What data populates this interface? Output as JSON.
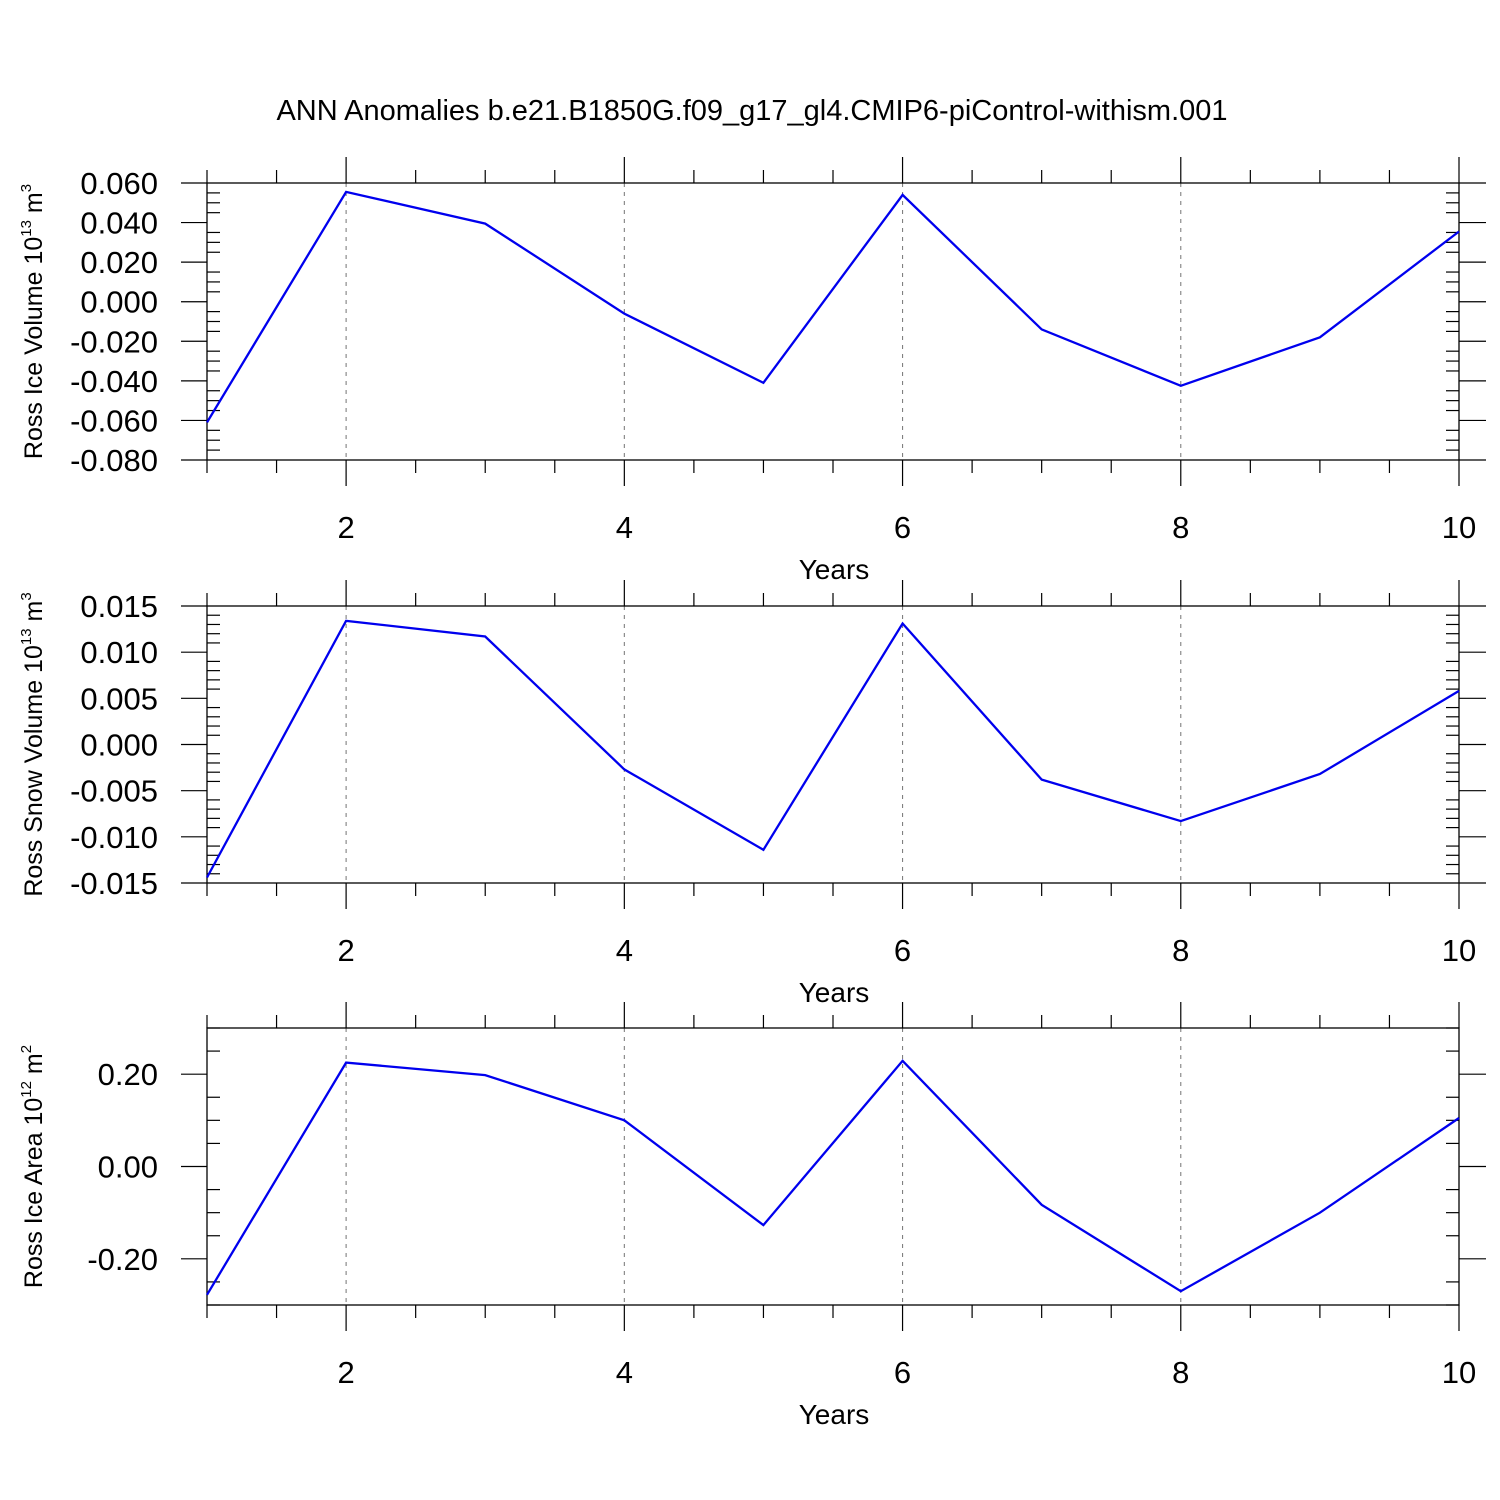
{
  "figure": {
    "title": "ANN Anomalies b.e21.B1850G.f09_g17_gl4.CMIP6-piControl-withism.001"
  },
  "colors": {
    "series": "#0000ee",
    "axes": "#000000",
    "grid": "#808080"
  },
  "chart_data": [
    {
      "type": "line",
      "title": "",
      "xlabel": "Years",
      "ylabel": "Ross Ice Volume 10",
      "ylabel_exponent": "13",
      "ylabel_unit": " m",
      "ylabel_unit_exponent": "3",
      "xlim": [
        1,
        10
      ],
      "ylim": [
        -0.08,
        0.06
      ],
      "x_ticks": [
        2,
        4,
        6,
        8,
        10
      ],
      "x_tick_labels": [
        "2",
        "4",
        "6",
        "8",
        "10"
      ],
      "y_ticks": [
        -0.08,
        -0.06,
        -0.04,
        -0.02,
        0.0,
        0.02,
        0.04,
        0.06
      ],
      "y_tick_labels": [
        "-0.080",
        "-0.060",
        "-0.040",
        "-0.020",
        "0.000",
        "0.020",
        "0.040",
        "0.060"
      ],
      "y_minor_step": 0.005,
      "grid": "vertical-dashed",
      "legend": "none",
      "x": [
        1,
        2,
        3,
        4,
        5,
        6,
        7,
        8,
        9,
        10
      ],
      "series": [
        {
          "values": [
            -0.061,
            0.0555,
            0.0395,
            -0.006,
            -0.041,
            0.054,
            -0.014,
            -0.0425,
            -0.018,
            0.0355
          ]
        }
      ]
    },
    {
      "type": "line",
      "title": "",
      "xlabel": "Years",
      "ylabel": "Ross Snow Volume 10",
      "ylabel_exponent": "13",
      "ylabel_unit": " m",
      "ylabel_unit_exponent": "3",
      "xlim": [
        1,
        10
      ],
      "ylim": [
        -0.015,
        0.015
      ],
      "x_ticks": [
        2,
        4,
        6,
        8,
        10
      ],
      "x_tick_labels": [
        "2",
        "4",
        "6",
        "8",
        "10"
      ],
      "y_ticks": [
        -0.015,
        -0.01,
        -0.005,
        0.0,
        0.005,
        0.01,
        0.015
      ],
      "y_tick_labels": [
        "-0.015",
        "-0.010",
        "-0.005",
        "0.000",
        "0.005",
        "0.010",
        "0.015"
      ],
      "y_minor_step": 0.001,
      "grid": "vertical-dashed",
      "legend": "none",
      "x": [
        1,
        2,
        3,
        4,
        5,
        6,
        7,
        8,
        9,
        10
      ],
      "series": [
        {
          "values": [
            -0.0144,
            0.0134,
            0.0117,
            -0.0027,
            -0.0114,
            0.0131,
            -0.0038,
            -0.0083,
            -0.0032,
            0.0058
          ]
        }
      ]
    },
    {
      "type": "line",
      "title": "",
      "xlabel": "Years",
      "ylabel": "Ross Ice Area 10",
      "ylabel_exponent": "12",
      "ylabel_unit": " m",
      "ylabel_unit_exponent": "2",
      "xlim": [
        1,
        10
      ],
      "ylim": [
        -0.3,
        0.3
      ],
      "x_ticks": [
        2,
        4,
        6,
        8,
        10
      ],
      "x_tick_labels": [
        "2",
        "4",
        "6",
        "8",
        "10"
      ],
      "y_ticks": [
        -0.2,
        0.0,
        0.2
      ],
      "y_tick_labels": [
        "-0.20",
        "0.00",
        "0.20"
      ],
      "y_minor_step": 0.05,
      "grid": "vertical-dashed",
      "legend": "none",
      "x": [
        1,
        2,
        3,
        4,
        5,
        6,
        7,
        8,
        9,
        10
      ],
      "series": [
        {
          "values": [
            -0.278,
            0.225,
            0.198,
            0.1,
            -0.127,
            0.229,
            -0.083,
            -0.27,
            -0.1,
            0.105
          ]
        }
      ]
    }
  ]
}
